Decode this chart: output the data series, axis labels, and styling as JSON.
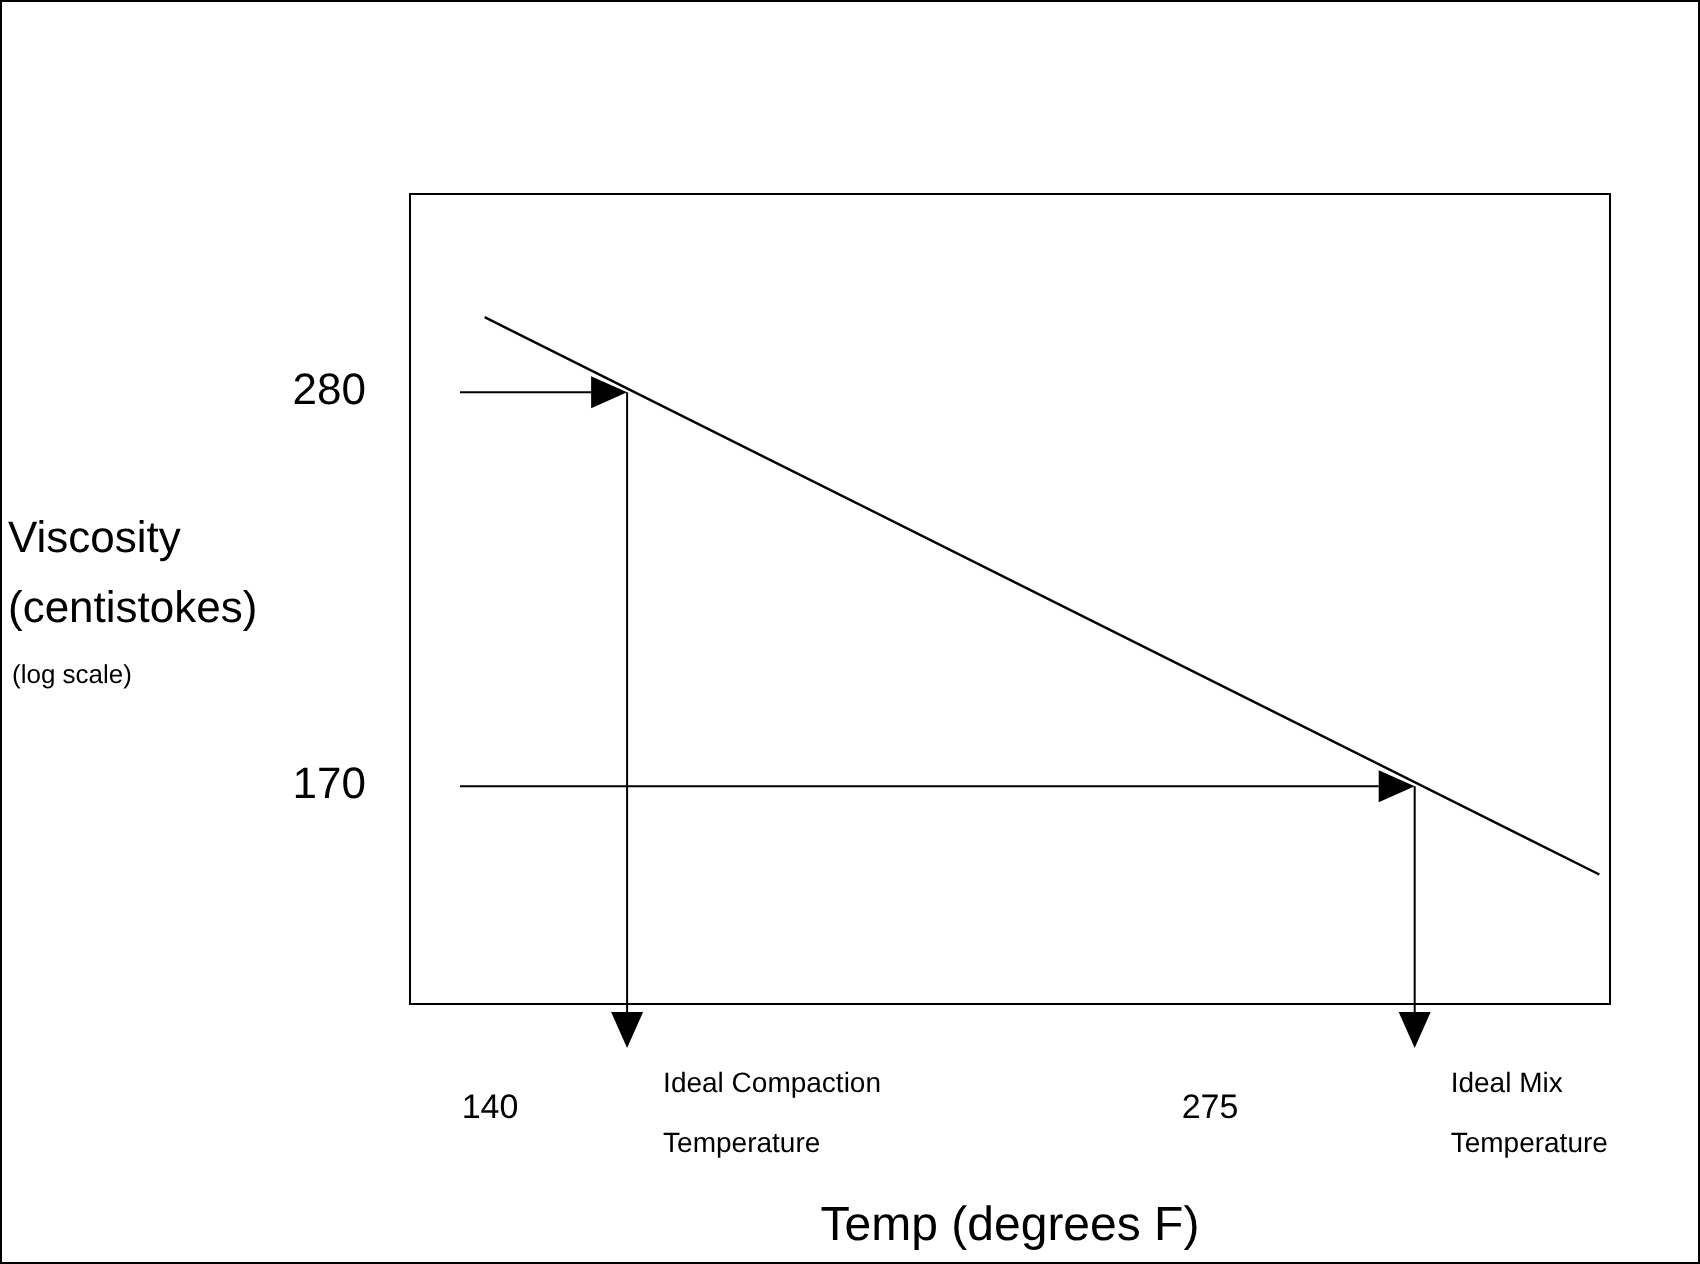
{
  "chart_data": {
    "type": "line",
    "xlabel": "Temp (degrees F)",
    "ylabel": "Viscosity (centistokes)",
    "x": [
      139,
      348
    ],
    "series": [
      {
        "color": "#000000",
        "values": [
          308,
          152
        ]
      }
    ],
    "xlim": [
      125,
      350
    ],
    "xticks": [
      140,
      275
    ],
    "ylim": [
      129,
      360
    ],
    "yticks": [
      170,
      280
    ],
    "log": "y",
    "legend": false,
    "marker": "none",
    "line_style": "solid",
    "annotations": [
      "Ideal Compaction Temperature",
      "Ideal Mix Temperature",
      "(log scale)"
    ]
  }
}
